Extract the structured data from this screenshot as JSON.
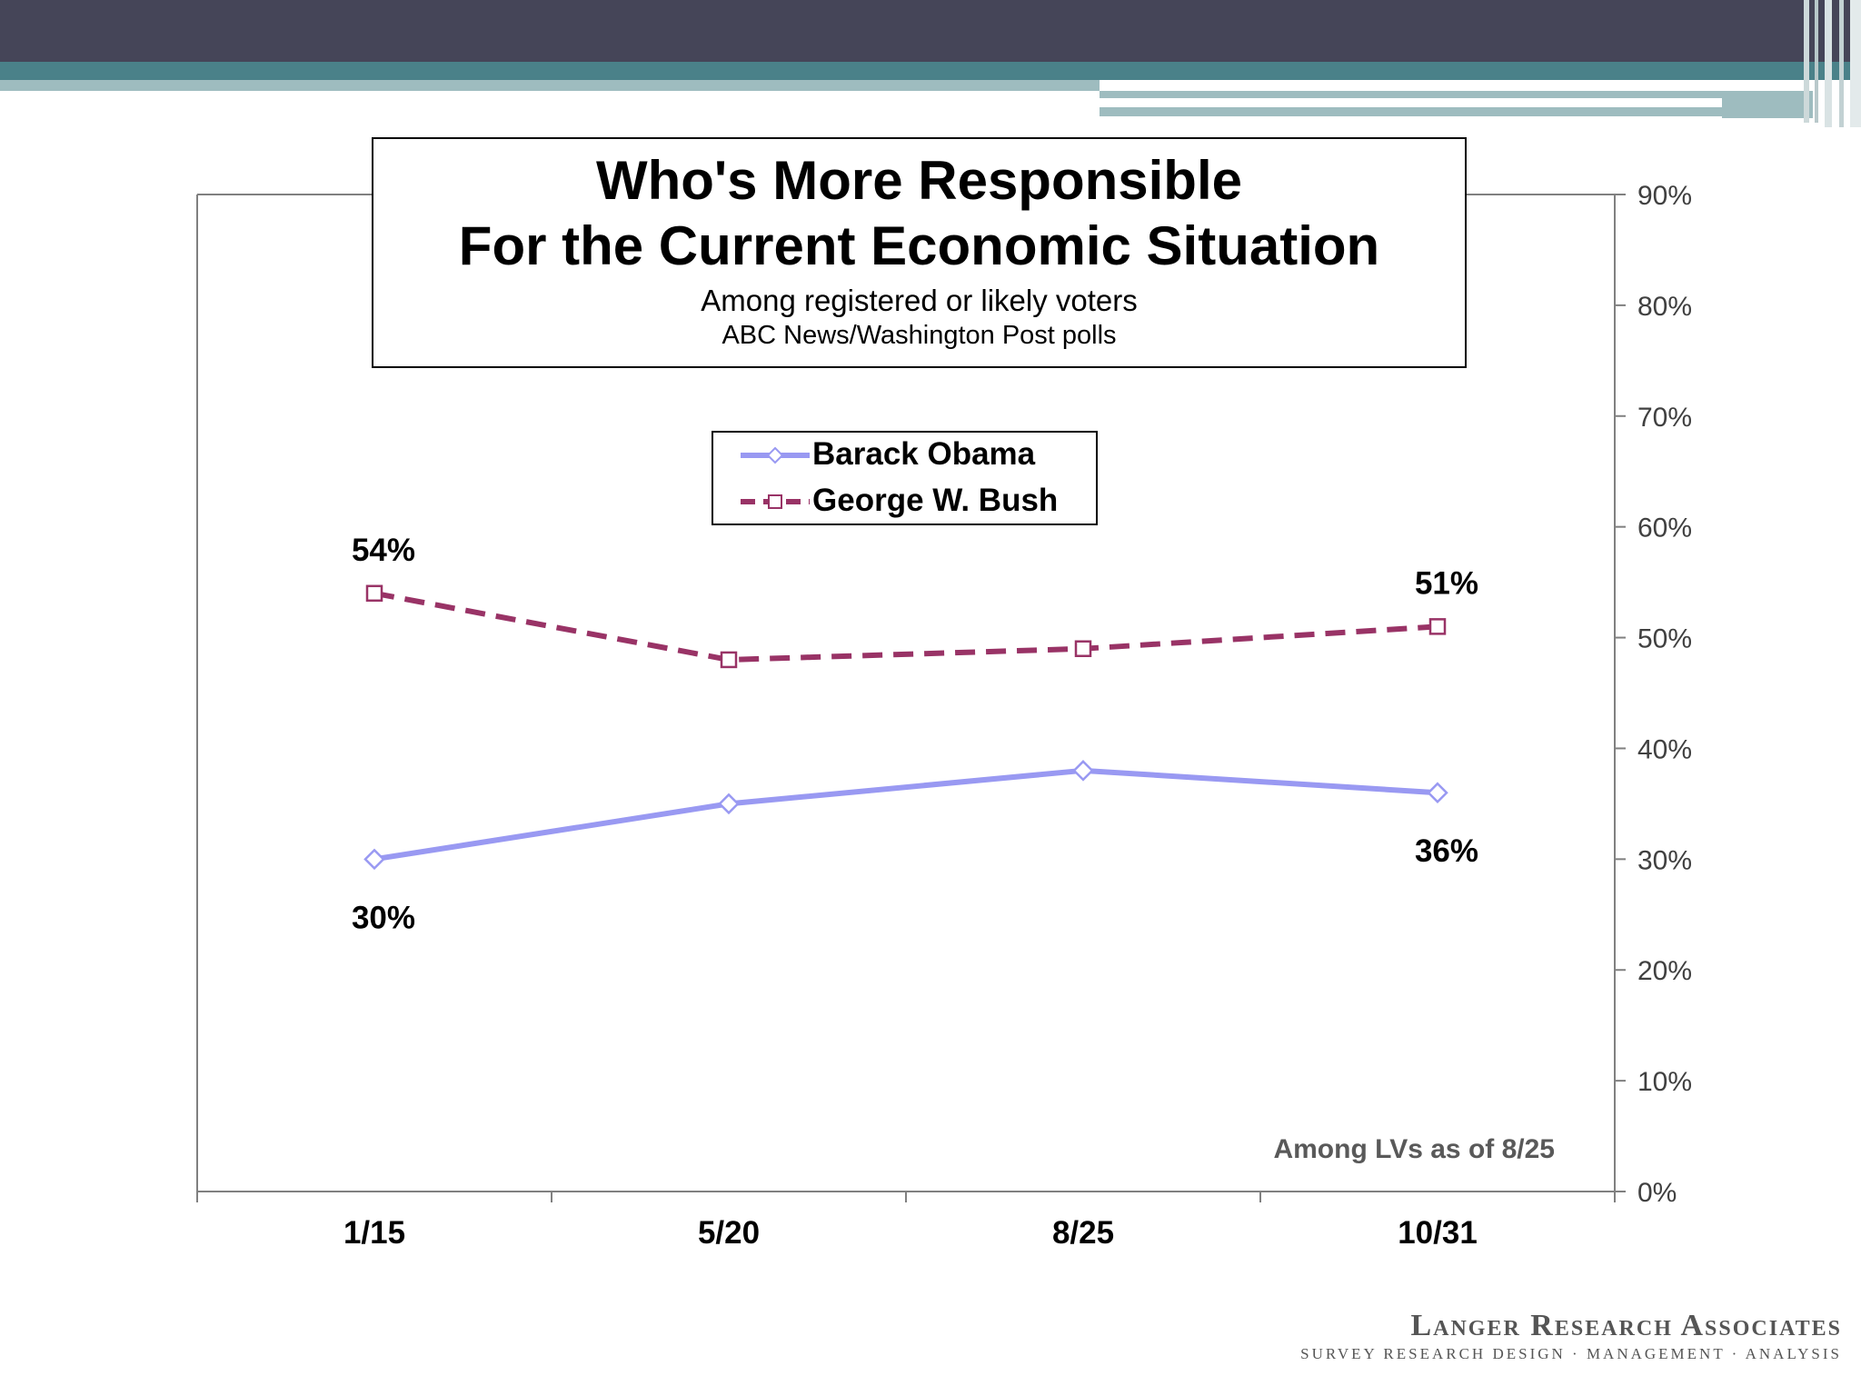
{
  "colors": {
    "header_dark": "#454558",
    "header_teal": "#4A8189",
    "header_light": "#9EBCBF",
    "obama": "#9999F2",
    "bush": "#993366",
    "axis": "#808080",
    "note": "#595959"
  },
  "chart_data": {
    "type": "line",
    "title": "Who's More Responsible",
    "title_line2": "For the Current Economic Situation",
    "subtitle": "Among registered or likely voters",
    "source": "ABC News/Washington  Post polls",
    "note": "Among LVs as of 8/25",
    "categories": [
      "1/15",
      "5/20",
      "8/25",
      "10/31"
    ],
    "ylim": [
      0,
      90
    ],
    "yticks": [
      "0%",
      "10%",
      "20%",
      "30%",
      "40%",
      "50%",
      "60%",
      "70%",
      "80%",
      "90%"
    ],
    "y_axis_side": "right",
    "legend_position": "top-center",
    "series": [
      {
        "name": "Barack Obama",
        "values": [
          30,
          35,
          38,
          36
        ],
        "style": "solid",
        "marker": "diamond",
        "labels": [
          {
            "index": 0,
            "text": "30%",
            "placement": "below"
          },
          {
            "index": 3,
            "text": "36%",
            "placement": "below"
          }
        ]
      },
      {
        "name": "George W. Bush",
        "values": [
          54,
          48,
          49,
          51
        ],
        "style": "dashed",
        "marker": "square",
        "labels": [
          {
            "index": 0,
            "text": "54%",
            "placement": "above"
          },
          {
            "index": 3,
            "text": "51%",
            "placement": "above"
          }
        ]
      }
    ]
  },
  "footer": {
    "brand": "Langer Research Associates",
    "tagline": "SURVEY RESEARCH DESIGN · MANAGEMENT · ANALYSIS"
  }
}
